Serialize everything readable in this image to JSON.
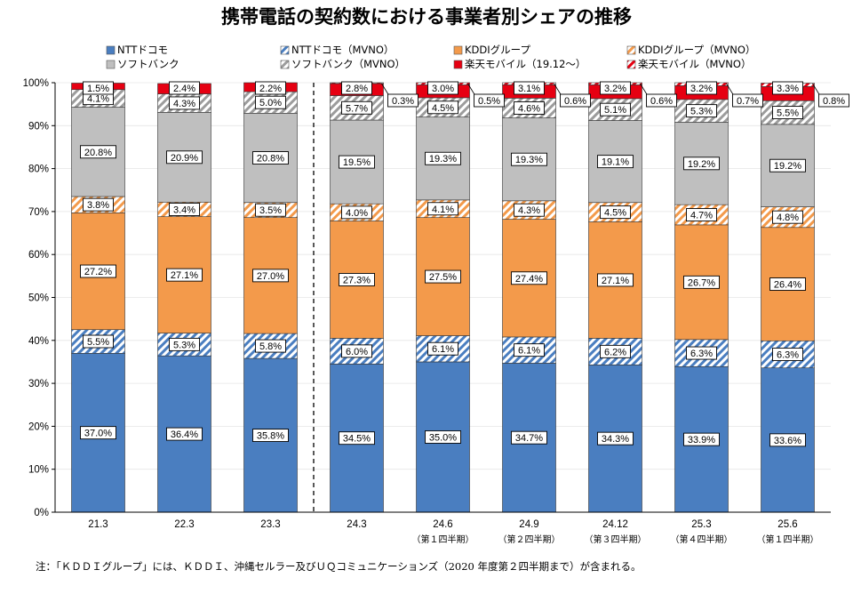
{
  "chart_data": {
    "type": "bar",
    "stacked": true,
    "title": "携帯電話の契約数における事業者別シェアの推移",
    "categories": [
      "21.3",
      "22.3",
      "23.3",
      "24.3",
      "24.6",
      "24.9",
      "24.12",
      "25.3",
      "25.6"
    ],
    "sub_categories": [
      "",
      "",
      "",
      "",
      "（第１四半期）",
      "（第２四半期）",
      "（第３四半期）",
      "（第４四半期）",
      "（第１四半期）"
    ],
    "ylim": [
      0,
      100
    ],
    "y_ticks": [
      "0%",
      "10%",
      "20%",
      "30%",
      "40%",
      "50%",
      "60%",
      "70%",
      "80%",
      "90%",
      "100%"
    ],
    "divider_after_index": 2,
    "legend_position": "top",
    "series": [
      {
        "name": "NTTドコモ",
        "color": "#4a7ec0",
        "pattern": "solid",
        "values": [
          37.0,
          36.4,
          35.8,
          34.5,
          35.0,
          34.7,
          34.3,
          33.9,
          33.6
        ],
        "labels": [
          "37.0%",
          "36.4%",
          "35.8%",
          "34.5%",
          "35.0%",
          "34.7%",
          "34.3%",
          "33.9%",
          "33.6%"
        ]
      },
      {
        "name": "NTTドコモ（MVNO）",
        "color": "#4a7ec0",
        "pattern": "hatch",
        "values": [
          5.5,
          5.3,
          5.8,
          6.0,
          6.1,
          6.1,
          6.2,
          6.3,
          6.3
        ],
        "labels": [
          "5.5%",
          "5.3%",
          "5.8%",
          "6.0%",
          "6.1%",
          "6.1%",
          "6.2%",
          "6.3%",
          "6.3%"
        ]
      },
      {
        "name": "KDDIグループ",
        "color": "#f39a4b",
        "pattern": "solid",
        "values": [
          27.2,
          27.1,
          27.0,
          27.3,
          27.5,
          27.4,
          27.1,
          26.7,
          26.4
        ],
        "labels": [
          "27.2%",
          "27.1%",
          "27.0%",
          "27.3%",
          "27.5%",
          "27.4%",
          "27.1%",
          "26.7%",
          "26.4%"
        ]
      },
      {
        "name": "KDDIグループ（MVNO）",
        "color": "#f39a4b",
        "pattern": "hatch",
        "values": [
          3.8,
          3.4,
          3.5,
          4.0,
          4.1,
          4.3,
          4.5,
          4.7,
          4.8
        ],
        "labels": [
          "3.8%",
          "3.4%",
          "3.5%",
          "4.0%",
          "4.1%",
          "4.3%",
          "4.5%",
          "4.7%",
          "4.8%"
        ]
      },
      {
        "name": "ソフトバンク",
        "color": "#bfbfbf",
        "pattern": "solid",
        "values": [
          20.8,
          20.9,
          20.8,
          19.5,
          19.3,
          19.3,
          19.1,
          19.2,
          19.2
        ],
        "labels": [
          "20.8%",
          "20.9%",
          "20.8%",
          "19.5%",
          "19.3%",
          "19.3%",
          "19.1%",
          "19.2%",
          "19.2%"
        ]
      },
      {
        "name": "ソフトバンク（MVNO）",
        "color": "#9c9c9c",
        "pattern": "hatch",
        "values": [
          4.1,
          4.3,
          5.0,
          5.7,
          4.5,
          4.6,
          5.1,
          5.3,
          5.5
        ],
        "labels": [
          "4.1%",
          "4.3%",
          "5.0%",
          "5.7%",
          "4.5%",
          "4.6%",
          "5.1%",
          "5.3%",
          "5.5%"
        ]
      },
      {
        "name": "楽天モバイル（19.12～）",
        "color": "#e60012",
        "pattern": "solid",
        "values": [
          1.5,
          2.4,
          2.2,
          2.8,
          3.0,
          3.1,
          3.2,
          3.2,
          3.3
        ],
        "labels": [
          "1.5%",
          "2.4%",
          "2.2%",
          "2.8%",
          "3.0%",
          "3.1%",
          "3.2%",
          "3.2%",
          "3.3%"
        ]
      },
      {
        "name": "楽天モバイル（MVNO）",
        "color": "#e60012",
        "pattern": "hatch",
        "values": [
          0,
          0,
          0,
          0.3,
          0.5,
          0.6,
          0.6,
          0.7,
          0.8
        ],
        "labels": [
          "",
          "",
          "",
          "0.3%",
          "0.5%",
          "0.6%",
          "0.6%",
          "0.7%",
          "0.8%"
        ]
      }
    ],
    "note": "注：「ＫＤＤＩグループ」には、ＫＤＤＩ、沖縄セルラー及びＵＱコミュニケーションズ（2020 年度第２四半期まで）が含まれる。"
  }
}
